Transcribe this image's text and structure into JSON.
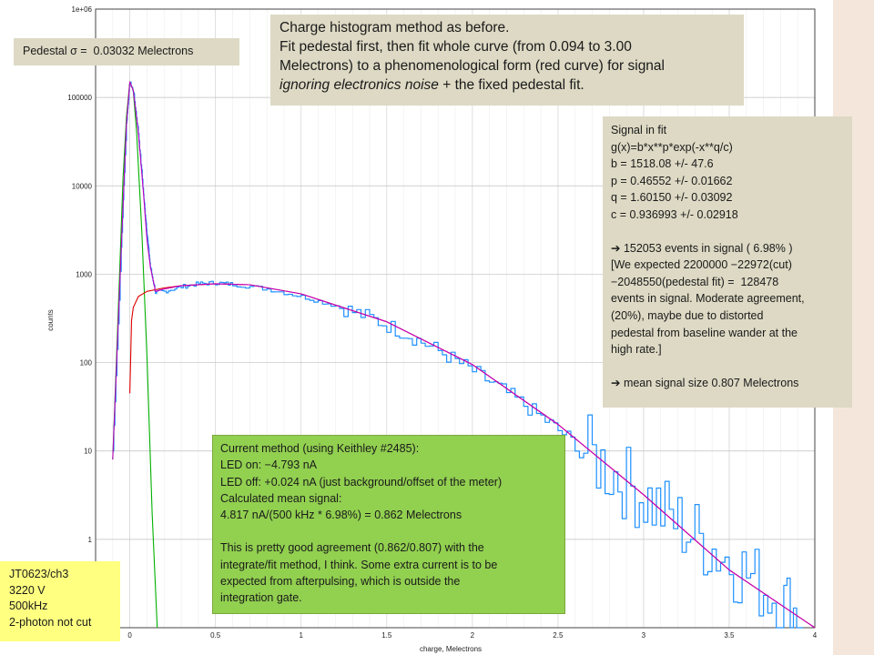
{
  "colors": {
    "background_strip": "#f5e6dc",
    "histogram": "#1e90ff",
    "pedestal_fit": "#00b000",
    "signal_fit": "#e00000",
    "total_fit": "#c000c0",
    "grid": "#c0c0c0",
    "tan_box": "#ddd9c4",
    "green_box": "#92d050",
    "yellow_box": "#ffff80"
  },
  "chart_data": {
    "type": "line",
    "title": "",
    "xlabel": "charge, Melectrons",
    "ylabel": "counts",
    "xlim": [
      -0.2,
      4.0
    ],
    "ylim": [
      0.1,
      1000000
    ],
    "yscale": "log",
    "grid": true,
    "x_ticks": [
      "0",
      "0.5",
      "1",
      "1.5",
      "2",
      "2.5",
      "3",
      "3.5",
      "4"
    ],
    "y_ticks": [
      "1e+06",
      "100000",
      "10000",
      "1000",
      "100",
      "10",
      "1"
    ],
    "series": [
      {
        "name": "",
        "x": [
          -0.1,
          -0.05,
          -0.02,
          0.0,
          0.02,
          0.05,
          0.08,
          0.1,
          0.12,
          0.15,
          0.2,
          0.3,
          0.4,
          0.5,
          0.6,
          0.8,
          1.0,
          1.2,
          1.4,
          1.6,
          1.8,
          2.0,
          2.2,
          2.4,
          2.6,
          2.8,
          3.0,
          3.2,
          3.4,
          3.6,
          3.8,
          3.95
        ],
        "values": [
          10,
          2000,
          50000,
          150000,
          120000,
          40000,
          8000,
          3000,
          1200,
          620,
          640,
          720,
          780,
          800,
          770,
          680,
          560,
          440,
          320,
          215,
          135,
          80,
          45,
          24,
          12,
          6,
          3,
          1.5,
          0.8,
          0.4,
          0.2,
          0.12
        ]
      },
      {
        "name": "",
        "x": [
          -0.1,
          -0.07,
          -0.04,
          -0.02,
          0.0,
          0.02,
          0.04,
          0.07,
          0.1,
          0.13,
          0.16
        ],
        "values": [
          8,
          300,
          12000,
          60000,
          150000,
          120000,
          40000,
          3000,
          120,
          2,
          0.05
        ]
      },
      {
        "name": "",
        "x": [
          0.0,
          0.01,
          0.02,
          0.05,
          0.1,
          0.2,
          0.3,
          0.5,
          0.7,
          1.0,
          1.5,
          2.0,
          2.5,
          3.0,
          3.5,
          4.0
        ],
        "values": [
          45,
          300,
          420,
          560,
          640,
          700,
          740,
          780,
          760,
          600,
          290,
          95,
          20,
          3.2,
          0.45,
          0.052
        ]
      },
      {
        "name": "",
        "x": [
          -0.1,
          -0.05,
          -0.02,
          0.0,
          0.02,
          0.05,
          0.08,
          0.1,
          0.12,
          0.15,
          0.2,
          0.3,
          0.5,
          0.7,
          1.0,
          1.5,
          2.0,
          2.5,
          3.0,
          3.5,
          4.0
        ],
        "values": [
          8,
          2000,
          50000,
          150000,
          120000,
          40000,
          8000,
          2500,
          1200,
          640,
          680,
          740,
          780,
          760,
          600,
          290,
          95,
          20,
          3.2,
          0.45,
          0.052
        ]
      }
    ]
  },
  "pedestal": {
    "text": "Pedestal σ =  0.03032 Melectrons"
  },
  "title": {
    "line1": "Charge histogram method as before.",
    "line2": "Fit pedestal first, then fit whole curve (from 0.094 to 3.00",
    "line3": "Melectrons) to a phenomenological form (red curve) for signal",
    "line4_italic": "ignoring electronics noise",
    "line4_rest": " + the fixed pedestal fit."
  },
  "signal_fit": {
    "heading": "Signal in fit",
    "formula": "g(x)=b*x**p*exp(-x**q/c)",
    "b": "b = 1518.08 +/- 47.6",
    "p": "p = 0.46552 +/- 0.01662",
    "q": "q = 1.60150 +/- 0.03092",
    "c": "c = 0.936993 +/- 0.02918",
    "events": "➔ 152053 events in signal ( 6.98% )",
    "note1": "[We expected 2200000 −22972(cut)",
    "note2": "−2048550(pedestal fit) =  128478",
    "note3": "events in signal. Moderate agreement,",
    "note4": "(20%), maybe due to distorted",
    "note5": "pedestal from baseline wander at the",
    "note6": "high rate.]",
    "mean": "➔ mean signal size 0.807 Melectrons"
  },
  "current_method": {
    "l1": "Current method (using Keithley #2485):",
    "l2": "LED on: −4.793 nA",
    "l3": "LED off: +0.024 nA (just background/offset of the meter)",
    "l4": "Calculated mean signal:",
    "l5": "4.817 nA/(500 kHz * 6.98%) = 0.862 Melectrons",
    "l6": "This is pretty good agreement (0.862/0.807) with the",
    "l7": "integrate/fit method, I think. Some extra current is to be",
    "l8": "expected from afterpulsing, which is outside the",
    "l9": "integration gate."
  },
  "run_info": {
    "l1": "JT0623/ch3",
    "l2": "3220 V",
    "l3": "500kHz",
    "l4": "2-photon not cut"
  }
}
